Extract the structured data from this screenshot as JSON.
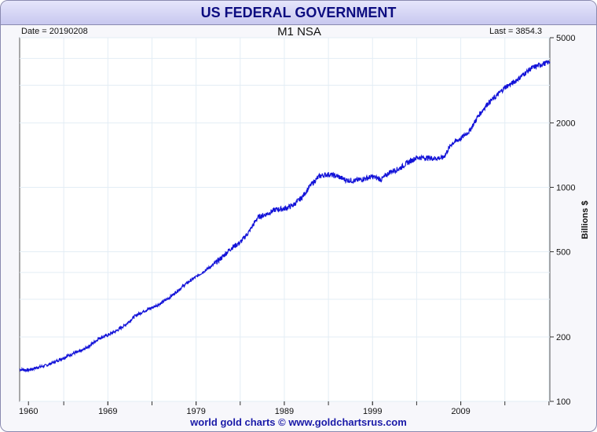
{
  "header": {
    "title": "US FEDERAL GOVERNMENT",
    "subtitle": "M1 NSA",
    "date_label": "Date = 20190208",
    "last_label": "Last = 3854.3"
  },
  "footer": {
    "credit": "world gold charts © www.goldchartsrus.com"
  },
  "colors": {
    "line": "#1212d8",
    "grid": "#e3edf5",
    "banner": "#c8c8ef",
    "title": "#0c0c80",
    "footer": "#1a1aa8"
  },
  "chart_data": {
    "type": "line",
    "title": "M1 NSA",
    "ylabel": "Billions $",
    "yscale": "log",
    "ylim": [
      100,
      5000
    ],
    "xlim": [
      1959,
      2019.1
    ],
    "x_ticks": [
      1960,
      1969,
      1979,
      1989,
      1999,
      2009
    ],
    "y_ticks": [
      100,
      200,
      500,
      1000,
      2000,
      5000
    ],
    "grid": true,
    "series": [
      {
        "values": [
          [
            1959.0,
            141
          ],
          [
            1960.0,
            140
          ],
          [
            1961.0,
            144
          ],
          [
            1962.0,
            147
          ],
          [
            1963.0,
            153
          ],
          [
            1964.0,
            160
          ],
          [
            1965.0,
            167
          ],
          [
            1966.0,
            172
          ],
          [
            1967.0,
            183
          ],
          [
            1968.0,
            197
          ],
          [
            1969.0,
            204
          ],
          [
            1970.0,
            214
          ],
          [
            1971.0,
            228
          ],
          [
            1972.0,
            249
          ],
          [
            1973.0,
            263
          ],
          [
            1974.0,
            274
          ],
          [
            1975.0,
            287
          ],
          [
            1976.0,
            306
          ],
          [
            1977.0,
            331
          ],
          [
            1978.0,
            358
          ],
          [
            1979.0,
            382
          ],
          [
            1980.0,
            408
          ],
          [
            1981.0,
            436
          ],
          [
            1982.0,
            474
          ],
          [
            1983.0,
            521
          ],
          [
            1984.0,
            552
          ],
          [
            1985.0,
            620
          ],
          [
            1986.0,
            725
          ],
          [
            1987.0,
            750
          ],
          [
            1988.0,
            787
          ],
          [
            1989.0,
            794
          ],
          [
            1990.0,
            825
          ],
          [
            1991.0,
            897
          ],
          [
            1992.0,
            1025
          ],
          [
            1993.0,
            1129
          ],
          [
            1994.0,
            1150
          ],
          [
            1995.0,
            1127
          ],
          [
            1996.0,
            1081
          ],
          [
            1997.0,
            1073
          ],
          [
            1998.0,
            1095
          ],
          [
            1999.0,
            1122
          ],
          [
            2000.0,
            1088
          ],
          [
            2001.0,
            1182
          ],
          [
            2002.0,
            1220
          ],
          [
            2003.0,
            1306
          ],
          [
            2004.0,
            1376
          ],
          [
            2005.0,
            1375
          ],
          [
            2006.0,
            1366
          ],
          [
            2007.0,
            1373
          ],
          [
            2008.0,
            1603
          ],
          [
            2009.0,
            1690
          ],
          [
            2010.0,
            1836
          ],
          [
            2011.0,
            2160
          ],
          [
            2012.0,
            2450
          ],
          [
            2013.0,
            2660
          ],
          [
            2014.0,
            2930
          ],
          [
            2015.0,
            3090
          ],
          [
            2016.0,
            3340
          ],
          [
            2017.0,
            3600
          ],
          [
            2018.0,
            3740
          ],
          [
            2019.1,
            3854
          ]
        ]
      }
    ]
  }
}
